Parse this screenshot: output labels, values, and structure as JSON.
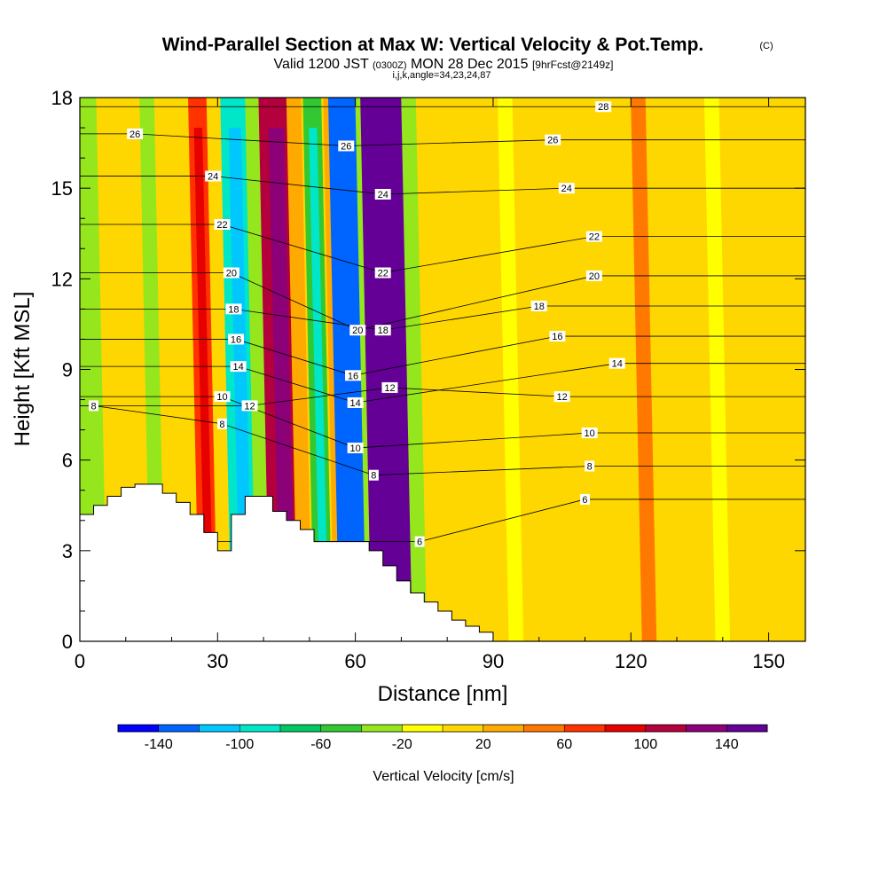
{
  "chart_data": {
    "type": "heatmap",
    "title": "Wind-Parallel Section at Max W: Vertical Velocity & Pot.Temp.",
    "title_suffix": "(C)",
    "subtitle": {
      "a": "Valid 1200 JST",
      "b": "(0300Z)",
      "c": "MON 28 Dec 2015",
      "d": "[9hrFcst@2149z]"
    },
    "info_line": "i,j,k,angle=34,23,24,87",
    "xlabel": "Distance [nm]",
    "ylabel": "Height [Kft MSL]",
    "xlim": [
      0,
      158
    ],
    "ylim": [
      0,
      18
    ],
    "x_ticks": [
      0,
      30,
      60,
      90,
      120,
      150
    ],
    "y_ticks": [
      0,
      3,
      6,
      9,
      12,
      15,
      18
    ],
    "colorbar": {
      "label": "Vertical Velocity [cm/s]",
      "boundaries": [
        -160,
        -140,
        -120,
        -100,
        -80,
        -60,
        -40,
        -20,
        0,
        20,
        40,
        60,
        80,
        100,
        120,
        140,
        160
      ],
      "tick_values": [
        -140,
        -100,
        -60,
        -20,
        20,
        60,
        100,
        140
      ],
      "colors": [
        "#0000ff",
        "#0064ff",
        "#00c8ff",
        "#00e6c8",
        "#00c864",
        "#32c832",
        "#96e61e",
        "#ffff00",
        "#ffd700",
        "#ffaa00",
        "#ff7800",
        "#ff3200",
        "#e60000",
        "#b4003c",
        "#8c0078",
        "#640096"
      ]
    },
    "velocity_bands_kft_nm": [
      {
        "x": 3,
        "w": -25,
        "note": "left edge green"
      },
      {
        "x": 10,
        "w": 10
      },
      {
        "x": 17,
        "w": -30
      },
      {
        "x": 28,
        "w": 60
      },
      {
        "x": 36,
        "w": -90
      },
      {
        "x": 40,
        "w": -40
      },
      {
        "x": 45,
        "w": 110
      },
      {
        "x": 49,
        "w": 20
      },
      {
        "x": 53,
        "w": -60
      },
      {
        "x": 57,
        "w": 30
      },
      {
        "x": 61,
        "w": -140
      },
      {
        "x": 64,
        "w": -40
      },
      {
        "x": 68,
        "w": 150
      },
      {
        "x": 74,
        "w": -30
      },
      {
        "x": 90,
        "w": 10
      },
      {
        "x": 95,
        "w": -20
      },
      {
        "x": 110,
        "w": 10
      },
      {
        "x": 124,
        "w": 40
      },
      {
        "x": 140,
        "w": -20
      },
      {
        "x": 155,
        "w": 0
      }
    ],
    "terrain_kft": {
      "x": [
        0,
        3,
        6,
        9,
        12,
        18,
        21,
        24,
        27,
        30,
        33,
        36,
        42,
        45,
        48,
        51,
        57,
        63,
        66,
        69,
        72,
        75,
        78,
        81,
        84,
        87,
        90
      ],
      "height": [
        4.2,
        4.5,
        4.8,
        5.1,
        5.2,
        4.9,
        4.6,
        4.2,
        3.6,
        3.0,
        4.2,
        4.8,
        4.3,
        4.0,
        3.7,
        3.3,
        3.3,
        3.0,
        2.5,
        2.0,
        1.6,
        1.3,
        1.0,
        0.7,
        0.5,
        0.3,
        0.0
      ]
    },
    "theta_contour_labels": [
      {
        "v": "26",
        "x": 12,
        "y": 16.8
      },
      {
        "v": "24",
        "x": 29,
        "y": 15.4
      },
      {
        "v": "22",
        "x": 31,
        "y": 13.8
      },
      {
        "v": "20",
        "x": 33,
        "y": 12.2
      },
      {
        "v": "18",
        "x": 33.5,
        "y": 11.0
      },
      {
        "v": "16",
        "x": 34,
        "y": 10.0
      },
      {
        "v": "14",
        "x": 34.5,
        "y": 9.1
      },
      {
        "v": "12",
        "x": 37,
        "y": 7.8
      },
      {
        "v": "10",
        "x": 31,
        "y": 8.1
      },
      {
        "v": "8",
        "x": 31,
        "y": 7.2
      },
      {
        "v": "8",
        "x": 3,
        "y": 7.8
      },
      {
        "v": "26",
        "x": 58,
        "y": 16.4
      },
      {
        "v": "24",
        "x": 66,
        "y": 14.8
      },
      {
        "v": "22",
        "x": 66,
        "y": 12.2
      },
      {
        "v": "20",
        "x": 60.5,
        "y": 10.3
      },
      {
        "v": "18",
        "x": 66,
        "y": 10.3
      },
      {
        "v": "16",
        "x": 59.5,
        "y": 8.8
      },
      {
        "v": "14",
        "x": 60,
        "y": 7.9
      },
      {
        "v": "12",
        "x": 67.5,
        "y": 8.4
      },
      {
        "v": "10",
        "x": 60,
        "y": 6.4
      },
      {
        "v": "8",
        "x": 64,
        "y": 5.5
      },
      {
        "v": "6",
        "x": 74,
        "y": 3.3
      },
      {
        "v": "28",
        "x": 114,
        "y": 17.7
      },
      {
        "v": "26",
        "x": 103,
        "y": 16.6
      },
      {
        "v": "24",
        "x": 106,
        "y": 15.0
      },
      {
        "v": "22",
        "x": 112,
        "y": 13.4
      },
      {
        "v": "20",
        "x": 112,
        "y": 12.1
      },
      {
        "v": "18",
        "x": 100,
        "y": 11.1
      },
      {
        "v": "16",
        "x": 104,
        "y": 10.1
      },
      {
        "v": "14",
        "x": 117,
        "y": 9.2
      },
      {
        "v": "12",
        "x": 105,
        "y": 8.1
      },
      {
        "v": "10",
        "x": 111,
        "y": 6.9
      },
      {
        "v": "8",
        "x": 111,
        "y": 5.8
      },
      {
        "v": "6",
        "x": 110,
        "y": 4.7
      }
    ]
  }
}
